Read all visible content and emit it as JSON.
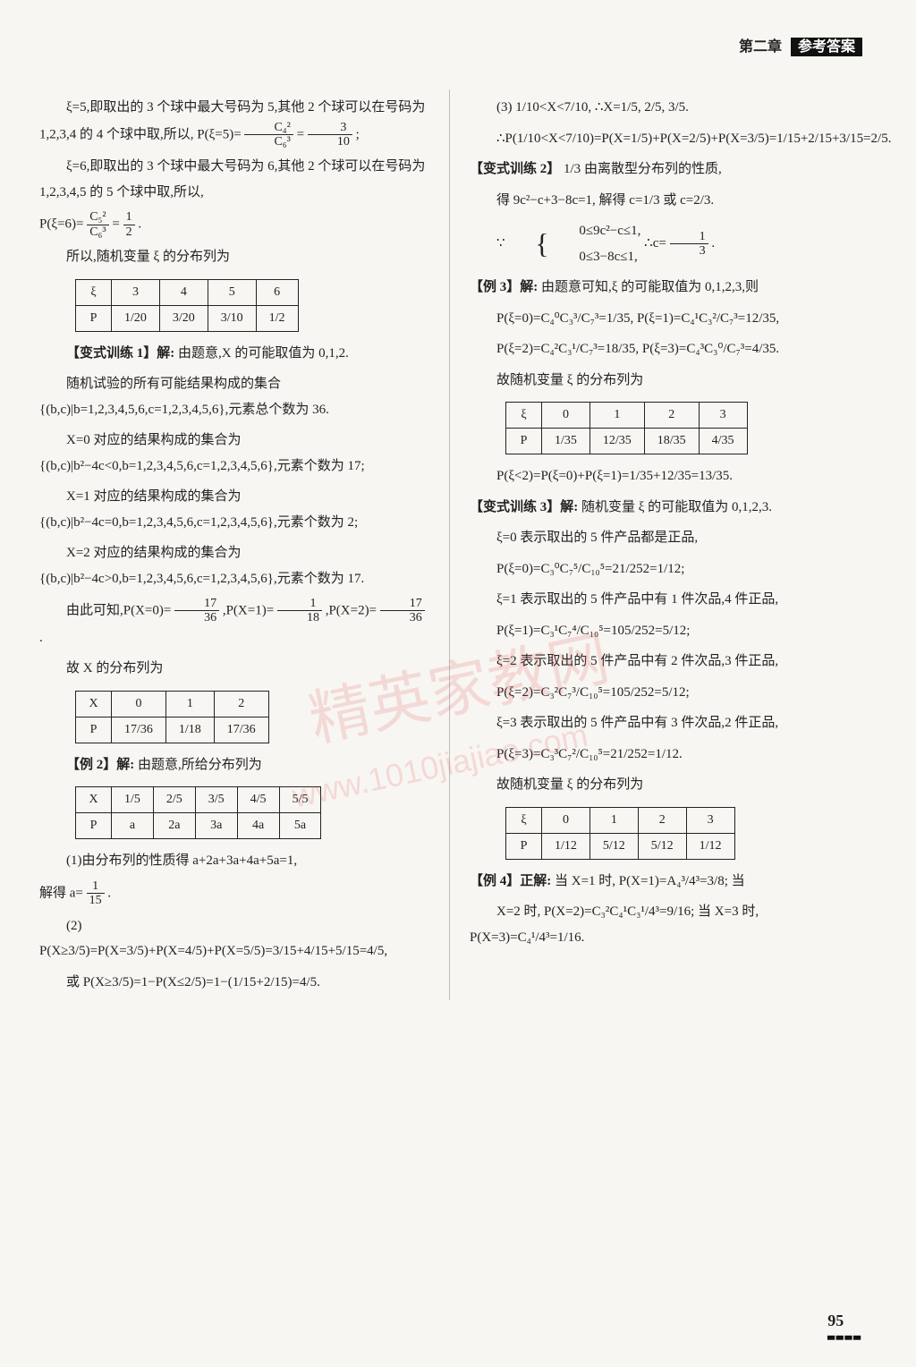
{
  "header": {
    "chapter": "第二章",
    "label": "参考答案"
  },
  "left": {
    "p1": "ξ=5,即取出的 3 个球中最大号码为 5,其他 2 个球可以在号码为 1,2,3,4 的 4 个球中取,所以, P(ξ=5)=",
    "p1_frac1n": "C₄²",
    "p1_frac1d": "C₆³",
    "p1_eq": "=",
    "p1_frac2n": "3",
    "p1_frac2d": "10",
    "p1_end": ";",
    "p2": "ξ=6,即取出的 3 个球中最大号码为 6,其他 2 个球可以在号码为 1,2,3,4,5 的 5 个球中取,所以,",
    "p3a": "P(ξ=6)=",
    "p3_f1n": "C₅²",
    "p3_f1d": "C₆³",
    "p3_eq": "=",
    "p3_f2n": "1",
    "p3_f2d": "2",
    "p3_end": ".",
    "p4": "所以,随机变量 ξ 的分布列为",
    "table1": {
      "r1": [
        "ξ",
        "3",
        "4",
        "5",
        "6"
      ],
      "r2": [
        "P",
        "1/20",
        "3/20",
        "3/10",
        "1/2"
      ]
    },
    "bst1_label": "【变式训练 1】解:",
    "bst1_text": "由题意,X 的可能取值为 0,1,2.",
    "p5": "随机试验的所有可能结果构成的集合{(b,c)|b=1,2,3,4,5,6,c=1,2,3,4,5,6},元素总个数为 36.",
    "p6": "X=0 对应的结果构成的集合为{(b,c)|b²−4c<0,b=1,2,3,4,5,6,c=1,2,3,4,5,6},元素个数为 17;",
    "p7": "X=1 对应的结果构成的集合为{(b,c)|b²−4c=0,b=1,2,3,4,5,6,c=1,2,3,4,5,6},元素个数为 2;",
    "p8": "X=2 对应的结果构成的集合为{(b,c)|b²−4c>0,b=1,2,3,4,5,6,c=1,2,3,4,5,6},元素个数为 17.",
    "p9a": "由此可知,P(X=0)=",
    "p9_f1n": "17",
    "p9_f1d": "36",
    "p9b": ",P(X=1)=",
    "p9_f2n": "1",
    "p9_f2d": "18",
    "p9c": ",P(X=2)=",
    "p9_f3n": "17",
    "p9_f3d": "36",
    "p9d": ".",
    "p10": "故 X 的分布列为",
    "table2": {
      "r1": [
        "X",
        "0",
        "1",
        "2"
      ],
      "r2": [
        "P",
        "17/36",
        "1/18",
        "17/36"
      ]
    },
    "ex2_label": "【例 2】解:",
    "ex2_text": "由题意,所给分布列为",
    "table3": {
      "r1": [
        "X",
        "1/5",
        "2/5",
        "3/5",
        "4/5",
        "5/5"
      ],
      "r2": [
        "P",
        "a",
        "2a",
        "3a",
        "4a",
        "5a"
      ]
    },
    "p11": "(1)由分布列的性质得 a+2a+3a+4a+5a=1,",
    "p12a": "解得 a=",
    "p12_fn": "1",
    "p12_fd": "15",
    "p12b": ".",
    "p13": "(2) P(X≥3/5)=P(X=3/5)+P(X=4/5)+P(X=5/5)=3/15+4/15+5/15=4/5,",
    "p14": "或 P(X≥3/5)=1−P(X≤2/5)=1−(1/15+2/15)=4/5."
  },
  "right": {
    "p1": "(3) 1/10<X<7/10, ∴X=1/5, 2/5, 3/5.",
    "p2": "∴P(1/10<X<7/10)=P(X=1/5)+P(X=2/5)+P(X=3/5)=1/15+2/15+3/15=2/5.",
    "bst2_label": "【变式训练 2】",
    "bst2_ans": "1/3",
    "bst2_text": "  由离散型分布列的性质,",
    "p3": "得 9c²−c+3−8c=1, 解得 c=1/3 或 c=2/3.",
    "p4a": "∵",
    "p4_sys1": "0≤9c²−c≤1,",
    "p4_sys2": "0≤3−8c≤1,",
    "p4b": "∴c=",
    "p4_fn": "1",
    "p4_fd": "3",
    "p4c": ".",
    "ex3_label": "【例 3】解:",
    "ex3_text": "由题意可知,ξ 的可能取值为 0,1,2,3,则",
    "p5": "P(ξ=0)=C₄⁰C₃³/C₇³=1/35, P(ξ=1)=C₄¹C₃²/C₇³=12/35,",
    "p6": "P(ξ=2)=C₄²C₃¹/C₇³=18/35, P(ξ=3)=C₄³C₃⁰/C₇³=4/35.",
    "p7": "故随机变量 ξ 的分布列为",
    "table4": {
      "r1": [
        "ξ",
        "0",
        "1",
        "2",
        "3"
      ],
      "r2": [
        "P",
        "1/35",
        "12/35",
        "18/35",
        "4/35"
      ]
    },
    "p8": "P(ξ<2)=P(ξ=0)+P(ξ=1)=1/35+12/35=13/35.",
    "bst3_label": "【变式训练 3】解:",
    "bst3_text": "随机变量 ξ 的可能取值为 0,1,2,3.",
    "p9": "ξ=0 表示取出的 5 件产品都是正品,",
    "p10": "P(ξ=0)=C₃⁰C₇⁵/C₁₀⁵=21/252=1/12;",
    "p11": "ξ=1 表示取出的 5 件产品中有 1 件次品,4 件正品,",
    "p12": "P(ξ=1)=C₃¹C₇⁴/C₁₀⁵=105/252=5/12;",
    "p13": "ξ=2 表示取出的 5 件产品中有 2 件次品,3 件正品,",
    "p14": "P(ξ=2)=C₃²C₇³/C₁₀⁵=105/252=5/12;",
    "p15": "ξ=3 表示取出的 5 件产品中有 3 件次品,2 件正品,",
    "p16": "P(ξ=3)=C₃³C₇²/C₁₀⁵=21/252=1/12.",
    "p17": "故随机变量 ξ 的分布列为",
    "table5": {
      "r1": [
        "ξ",
        "0",
        "1",
        "2",
        "3"
      ],
      "r2": [
        "P",
        "1/12",
        "5/12",
        "5/12",
        "1/12"
      ]
    },
    "ex4_label": "【例 4】正解:",
    "ex4_text": "当 X=1 时, P(X=1)=A₄³/4³=3/8; 当",
    "p18": "X=2 时, P(X=2)=C₃²C₄¹C₃¹/4³=9/16; 当 X=3 时, P(X=3)=C₄¹/4³=1/16."
  },
  "pagenum": "95",
  "watermark1": "精英家教网",
  "watermark2": "www.1010jiajiao.com"
}
